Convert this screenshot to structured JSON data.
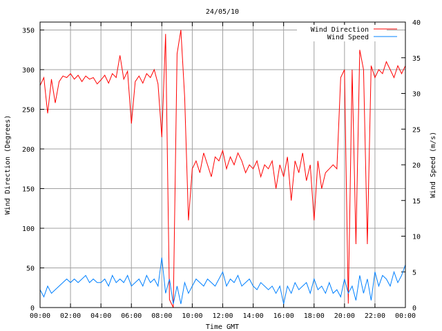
{
  "chart_data": {
    "type": "line",
    "title": "24/05/10",
    "xlabel": "Time GMT",
    "ylabel": "Wind Direction (Degrees)",
    "y2label": "Wind Speed (m/s)",
    "xlim_hours": [
      0,
      24
    ],
    "ylim": [
      0,
      360
    ],
    "y2lim": [
      0,
      40
    ],
    "grid": true,
    "legend_position": "top-right",
    "x_tick_labels": [
      "00:00",
      "02:00",
      "04:00",
      "06:00",
      "08:00",
      "10:00",
      "12:00",
      "14:00",
      "16:00",
      "18:00",
      "20:00",
      "22:00",
      "00:00"
    ],
    "y_ticks": [
      0,
      50,
      100,
      150,
      200,
      250,
      300,
      350
    ],
    "y2_ticks": [
      0,
      5,
      10,
      15,
      20,
      25,
      30,
      35,
      40
    ],
    "x_start_hours": 0,
    "x_step_hours": 0.25,
    "series": [
      {
        "name": "Wind Direction",
        "axis": "y",
        "color": "#ff0000",
        "values": [
          280,
          290,
          245,
          288,
          258,
          285,
          292,
          290,
          295,
          288,
          293,
          285,
          292,
          288,
          290,
          282,
          287,
          293,
          283,
          295,
          290,
          318,
          288,
          298,
          232,
          285,
          292,
          283,
          295,
          290,
          300,
          282,
          215,
          345,
          10,
          0,
          320,
          350,
          265,
          110,
          175,
          185,
          170,
          195,
          180,
          165,
          190,
          185,
          198,
          175,
          190,
          180,
          195,
          185,
          170,
          180,
          175,
          185,
          165,
          180,
          175,
          185,
          150,
          180,
          165,
          190,
          135,
          185,
          170,
          195,
          160,
          180,
          110,
          185,
          150,
          170,
          175,
          180,
          175,
          290,
          300,
          5,
          300,
          80,
          325,
          300,
          80,
          305,
          290,
          300,
          295,
          310,
          300,
          290,
          305,
          295,
          305
        ]
      },
      {
        "name": "Wind Speed",
        "axis": "y2",
        "color": "#0080ff",
        "values": [
          2.5,
          1.5,
          3,
          2,
          2.5,
          3,
          3.5,
          4,
          3.5,
          4,
          3.5,
          4,
          4.5,
          3.5,
          4,
          3.5,
          3.5,
          4,
          3,
          4.5,
          3.5,
          4,
          3.5,
          4.5,
          3,
          3.5,
          4,
          3,
          4.5,
          3.5,
          4,
          3,
          7,
          2,
          4,
          0.5,
          3,
          0.5,
          3.5,
          2,
          3,
          4,
          3.5,
          3,
          4,
          3.5,
          3,
          4,
          5,
          3,
          4,
          3.5,
          4.5,
          3,
          3.5,
          4,
          3,
          2.5,
          3.5,
          3,
          2.5,
          3,
          2,
          3,
          0.5,
          3,
          2,
          3.5,
          2.5,
          3,
          3.5,
          2,
          4,
          2.5,
          3,
          2,
          3.5,
          2,
          2.5,
          1.5,
          4,
          2,
          3,
          1,
          4.5,
          2,
          4,
          1,
          5,
          3,
          4.5,
          4,
          3,
          5,
          3.5,
          4.5,
          6
        ]
      }
    ]
  }
}
